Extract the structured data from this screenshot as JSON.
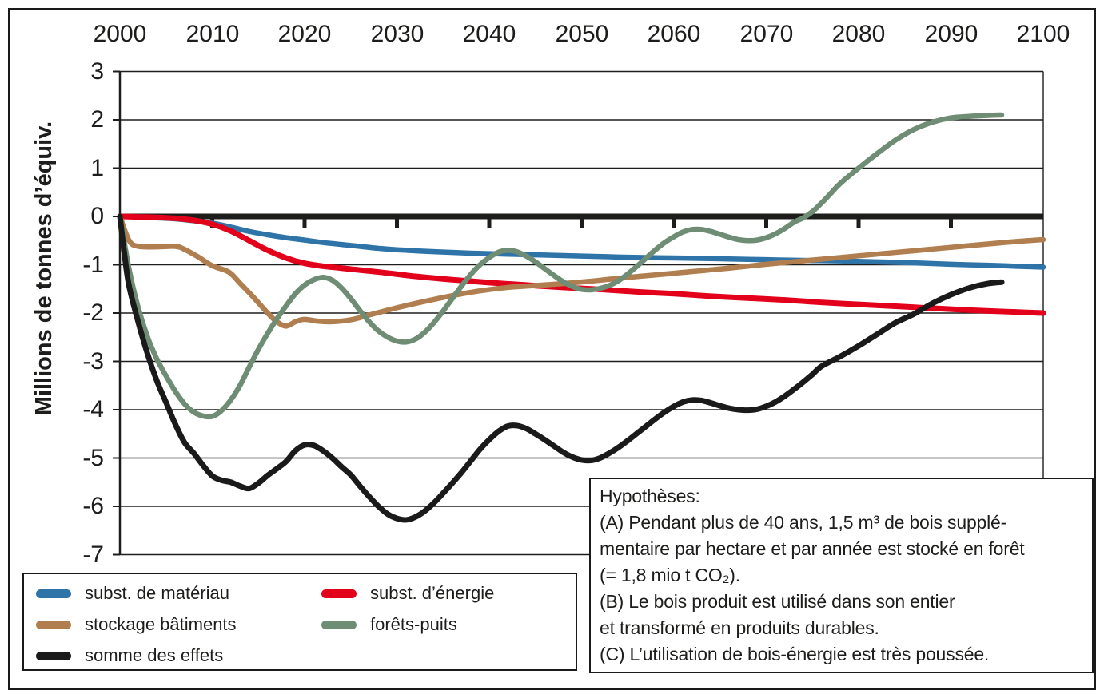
{
  "chart_data": {
    "type": "line",
    "title": "",
    "ylabel": "Millions de tonnes d’équiv.",
    "xlabel": "",
    "x_label_position": "top",
    "legend_position": "bottom-left-box",
    "grid": "horizontal",
    "xlim": [
      2000,
      2100
    ],
    "ylim": [
      -7,
      3
    ],
    "x_ticks": [
      2000,
      2010,
      2020,
      2030,
      2040,
      2050,
      2060,
      2070,
      2080,
      2090,
      2100
    ],
    "y_ticks": [
      3,
      2,
      1,
      0,
      -1,
      -2,
      -3,
      -4,
      -5,
      -6,
      -7
    ],
    "zero_line_emphasized": true,
    "series": [
      {
        "name": "subst. de matériau",
        "color": "#2e74a8",
        "points": [
          [
            2000,
            0
          ],
          [
            2002,
            -0.01
          ],
          [
            2004,
            -0.03
          ],
          [
            2006,
            -0.05
          ],
          [
            2008,
            -0.09
          ],
          [
            2010,
            -0.14
          ],
          [
            2012,
            -0.22
          ],
          [
            2014,
            -0.31
          ],
          [
            2016,
            -0.38
          ],
          [
            2018,
            -0.44
          ],
          [
            2020,
            -0.49
          ],
          [
            2022,
            -0.54
          ],
          [
            2024,
            -0.58
          ],
          [
            2026,
            -0.62
          ],
          [
            2028,
            -0.66
          ],
          [
            2030,
            -0.69
          ],
          [
            2034,
            -0.73
          ],
          [
            2038,
            -0.76
          ],
          [
            2042,
            -0.78
          ],
          [
            2046,
            -0.8
          ],
          [
            2050,
            -0.82
          ],
          [
            2054,
            -0.84
          ],
          [
            2058,
            -0.855
          ],
          [
            2062,
            -0.865
          ],
          [
            2066,
            -0.88
          ],
          [
            2070,
            -0.895
          ],
          [
            2074,
            -0.91
          ],
          [
            2078,
            -0.92
          ],
          [
            2082,
            -0.94
          ],
          [
            2086,
            -0.96
          ],
          [
            2090,
            -0.99
          ],
          [
            2094,
            -1.01
          ],
          [
            2097,
            -1.03
          ],
          [
            2100,
            -1.05
          ]
        ]
      },
      {
        "name": "subst. d’énergie",
        "color": "#e2001a",
        "points": [
          [
            2000,
            0
          ],
          [
            2002,
            -0.01
          ],
          [
            2004,
            -0.02
          ],
          [
            2006,
            -0.04
          ],
          [
            2008,
            -0.08
          ],
          [
            2010,
            -0.16
          ],
          [
            2012,
            -0.3
          ],
          [
            2014,
            -0.5
          ],
          [
            2016,
            -0.7
          ],
          [
            2018,
            -0.86
          ],
          [
            2020,
            -0.97
          ],
          [
            2022,
            -1.03
          ],
          [
            2024,
            -1.07
          ],
          [
            2028,
            -1.15
          ],
          [
            2032,
            -1.24
          ],
          [
            2036,
            -1.31
          ],
          [
            2040,
            -1.37
          ],
          [
            2044,
            -1.42
          ],
          [
            2048,
            -1.47
          ],
          [
            2052,
            -1.51
          ],
          [
            2056,
            -1.56
          ],
          [
            2060,
            -1.6
          ],
          [
            2064,
            -1.65
          ],
          [
            2068,
            -1.69
          ],
          [
            2072,
            -1.73
          ],
          [
            2076,
            -1.78
          ],
          [
            2080,
            -1.82
          ],
          [
            2084,
            -1.86
          ],
          [
            2088,
            -1.9
          ],
          [
            2092,
            -1.94
          ],
          [
            2096,
            -1.97
          ],
          [
            2100,
            -2.0
          ]
        ]
      },
      {
        "name": "stockage bâtiments",
        "color": "#b07e4f",
        "points": [
          [
            2000,
            0
          ],
          [
            2001,
            -0.5
          ],
          [
            2002,
            -0.62
          ],
          [
            2004,
            -0.63
          ],
          [
            2006,
            -0.62
          ],
          [
            2007,
            -0.68
          ],
          [
            2008.5,
            -0.84
          ],
          [
            2010,
            -1.02
          ],
          [
            2011.8,
            -1.15
          ],
          [
            2013,
            -1.38
          ],
          [
            2014.5,
            -1.68
          ],
          [
            2016,
            -2.0
          ],
          [
            2017,
            -2.18
          ],
          [
            2018,
            -2.27
          ],
          [
            2019,
            -2.18
          ],
          [
            2020,
            -2.13
          ],
          [
            2021.5,
            -2.17
          ],
          [
            2023,
            -2.18
          ],
          [
            2025,
            -2.14
          ],
          [
            2027,
            -2.04
          ],
          [
            2030,
            -1.89
          ],
          [
            2033,
            -1.76
          ],
          [
            2036,
            -1.64
          ],
          [
            2039,
            -1.54
          ],
          [
            2042,
            -1.47
          ],
          [
            2045,
            -1.43
          ],
          [
            2048,
            -1.39
          ],
          [
            2051,
            -1.34
          ],
          [
            2054,
            -1.28
          ],
          [
            2058,
            -1.21
          ],
          [
            2062,
            -1.14
          ],
          [
            2066,
            -1.07
          ],
          [
            2070,
            -0.99
          ],
          [
            2074,
            -0.92
          ],
          [
            2078,
            -0.85
          ],
          [
            2082,
            -0.78
          ],
          [
            2086,
            -0.71
          ],
          [
            2090,
            -0.64
          ],
          [
            2094,
            -0.57
          ],
          [
            2097,
            -0.52
          ],
          [
            2100,
            -0.48
          ]
        ]
      },
      {
        "name": "forêts-puits",
        "color": "#6f8d74",
        "points": [
          [
            2000,
            0
          ],
          [
            2001,
            -1.1
          ],
          [
            2002,
            -1.9
          ],
          [
            2003,
            -2.5
          ],
          [
            2004,
            -2.95
          ],
          [
            2005,
            -3.3
          ],
          [
            2006,
            -3.62
          ],
          [
            2007,
            -3.88
          ],
          [
            2008,
            -4.05
          ],
          [
            2009,
            -4.13
          ],
          [
            2010,
            -4.14
          ],
          [
            2011,
            -4.02
          ],
          [
            2012,
            -3.8
          ],
          [
            2013,
            -3.5
          ],
          [
            2014,
            -3.12
          ],
          [
            2015,
            -2.75
          ],
          [
            2016,
            -2.42
          ],
          [
            2017,
            -2.12
          ],
          [
            2018,
            -1.85
          ],
          [
            2019,
            -1.6
          ],
          [
            2020,
            -1.42
          ],
          [
            2021,
            -1.31
          ],
          [
            2022,
            -1.26
          ],
          [
            2023,
            -1.32
          ],
          [
            2024,
            -1.48
          ],
          [
            2025,
            -1.7
          ],
          [
            2026,
            -1.95
          ],
          [
            2027,
            -2.18
          ],
          [
            2028,
            -2.37
          ],
          [
            2029,
            -2.5
          ],
          [
            2030,
            -2.58
          ],
          [
            2031,
            -2.6
          ],
          [
            2032,
            -2.54
          ],
          [
            2033,
            -2.4
          ],
          [
            2034,
            -2.2
          ],
          [
            2035,
            -1.96
          ],
          [
            2036,
            -1.7
          ],
          [
            2037,
            -1.44
          ],
          [
            2038,
            -1.2
          ],
          [
            2039,
            -1.0
          ],
          [
            2040,
            -0.85
          ],
          [
            2041,
            -0.74
          ],
          [
            2042,
            -0.7
          ],
          [
            2043,
            -0.73
          ],
          [
            2044,
            -0.82
          ],
          [
            2045,
            -0.94
          ],
          [
            2046,
            -1.08
          ],
          [
            2047,
            -1.22
          ],
          [
            2048,
            -1.35
          ],
          [
            2049,
            -1.45
          ],
          [
            2050,
            -1.51
          ],
          [
            2051,
            -1.52
          ],
          [
            2052,
            -1.49
          ],
          [
            2053,
            -1.43
          ],
          [
            2054,
            -1.33
          ],
          [
            2055,
            -1.19
          ],
          [
            2056,
            -1.03
          ],
          [
            2057,
            -0.86
          ],
          [
            2058,
            -0.69
          ],
          [
            2059,
            -0.54
          ],
          [
            2060,
            -0.42
          ],
          [
            2061,
            -0.32
          ],
          [
            2062,
            -0.27
          ],
          [
            2063,
            -0.27
          ],
          [
            2064,
            -0.31
          ],
          [
            2065,
            -0.37
          ],
          [
            2066,
            -0.43
          ],
          [
            2067,
            -0.48
          ],
          [
            2068,
            -0.5
          ],
          [
            2069,
            -0.49
          ],
          [
            2070,
            -0.44
          ],
          [
            2071,
            -0.36
          ],
          [
            2072,
            -0.25
          ],
          [
            2073,
            -0.12
          ],
          [
            2074,
            -0.03
          ],
          [
            2075,
            0.1
          ],
          [
            2076,
            0.28
          ],
          [
            2077,
            0.48
          ],
          [
            2078,
            0.68
          ],
          [
            2080,
            1.0
          ],
          [
            2082,
            1.3
          ],
          [
            2084,
            1.58
          ],
          [
            2086,
            1.8
          ],
          [
            2088,
            1.95
          ],
          [
            2090,
            2.04
          ],
          [
            2092,
            2.07
          ],
          [
            2094,
            2.09
          ],
          [
            2095.5,
            2.1
          ]
        ]
      },
      {
        "name": "somme des effets",
        "color": "#1a1a1a",
        "points": [
          [
            2000,
            0
          ],
          [
            2000.5,
            -0.8
          ],
          [
            2001,
            -1.45
          ],
          [
            2002,
            -2.2
          ],
          [
            2003,
            -2.85
          ],
          [
            2004,
            -3.4
          ],
          [
            2005,
            -3.85
          ],
          [
            2006,
            -4.3
          ],
          [
            2007,
            -4.68
          ],
          [
            2008,
            -4.9
          ],
          [
            2009,
            -5.15
          ],
          [
            2010,
            -5.37
          ],
          [
            2011,
            -5.46
          ],
          [
            2012,
            -5.5
          ],
          [
            2013,
            -5.58
          ],
          [
            2014,
            -5.63
          ],
          [
            2015,
            -5.52
          ],
          [
            2016,
            -5.36
          ],
          [
            2017,
            -5.22
          ],
          [
            2018,
            -5.07
          ],
          [
            2019,
            -4.85
          ],
          [
            2020,
            -4.73
          ],
          [
            2021,
            -4.74
          ],
          [
            2022,
            -4.85
          ],
          [
            2023,
            -5.0
          ],
          [
            2024,
            -5.18
          ],
          [
            2025,
            -5.35
          ],
          [
            2026,
            -5.58
          ],
          [
            2027,
            -5.8
          ],
          [
            2028,
            -6.0
          ],
          [
            2029,
            -6.16
          ],
          [
            2030,
            -6.25
          ],
          [
            2031,
            -6.28
          ],
          [
            2032,
            -6.22
          ],
          [
            2033,
            -6.1
          ],
          [
            2034,
            -5.93
          ],
          [
            2035,
            -5.73
          ],
          [
            2036,
            -5.52
          ],
          [
            2037,
            -5.3
          ],
          [
            2038,
            -5.06
          ],
          [
            2039,
            -4.82
          ],
          [
            2040,
            -4.62
          ],
          [
            2041,
            -4.45
          ],
          [
            2042,
            -4.34
          ],
          [
            2043,
            -4.33
          ],
          [
            2044,
            -4.39
          ],
          [
            2045,
            -4.5
          ],
          [
            2046,
            -4.62
          ],
          [
            2047,
            -4.75
          ],
          [
            2048,
            -4.88
          ],
          [
            2049,
            -4.98
          ],
          [
            2050,
            -5.04
          ],
          [
            2051,
            -5.05
          ],
          [
            2052,
            -5.0
          ],
          [
            2053,
            -4.9
          ],
          [
            2054,
            -4.78
          ],
          [
            2055,
            -4.64
          ],
          [
            2056,
            -4.49
          ],
          [
            2057,
            -4.34
          ],
          [
            2058,
            -4.19
          ],
          [
            2059,
            -4.05
          ],
          [
            2060,
            -3.93
          ],
          [
            2061,
            -3.84
          ],
          [
            2062,
            -3.8
          ],
          [
            2063,
            -3.81
          ],
          [
            2064,
            -3.86
          ],
          [
            2065,
            -3.92
          ],
          [
            2066,
            -3.97
          ],
          [
            2067,
            -4.0
          ],
          [
            2068,
            -4.01
          ],
          [
            2069,
            -3.99
          ],
          [
            2070,
            -3.93
          ],
          [
            2071,
            -3.84
          ],
          [
            2072,
            -3.72
          ],
          [
            2073,
            -3.58
          ],
          [
            2074,
            -3.43
          ],
          [
            2075,
            -3.27
          ],
          [
            2076,
            -3.1
          ],
          [
            2078,
            -2.9
          ],
          [
            2080,
            -2.68
          ],
          [
            2082,
            -2.44
          ],
          [
            2084,
            -2.2
          ],
          [
            2086,
            -2.02
          ],
          [
            2088,
            -1.8
          ],
          [
            2090,
            -1.62
          ],
          [
            2092,
            -1.48
          ],
          [
            2094,
            -1.39
          ],
          [
            2095.5,
            -1.36
          ]
        ]
      }
    ]
  },
  "hypothesis_box": {
    "lines": [
      "Hypothèses:",
      "(A) Pendant plus de 40 ans, 1,5 m³ de bois supplé-",
      "mentaire par hectare et par année est stocké en forêt",
      "(= 1,8 mio t CO₂).",
      "(B) Le bois produit est utilisé dans son entier",
      "et transformé en produits durables.",
      "(C) L’utilisation de bois-énergie est très poussée."
    ]
  }
}
